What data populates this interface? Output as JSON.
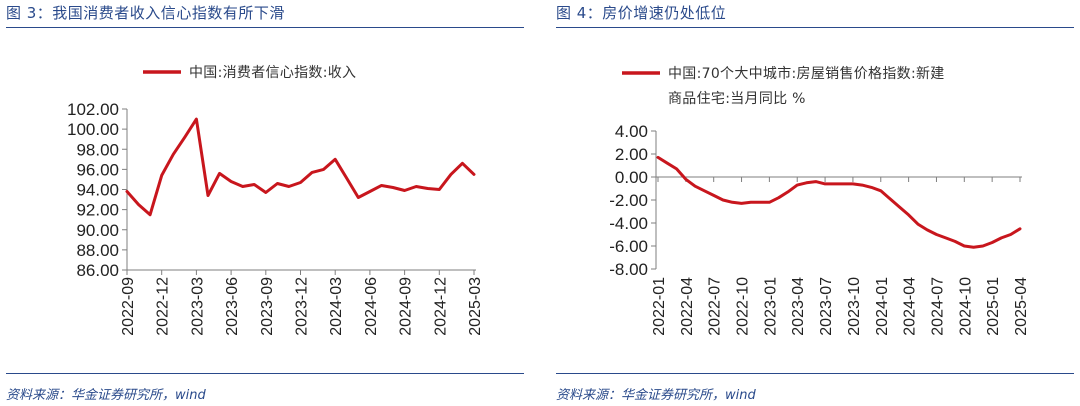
{
  "figures": [
    {
      "title": "图 3：我国消费者收入信心指数有所下滑",
      "source": "资料来源：华金证券研究所，wind",
      "chart_data": {
        "type": "line",
        "title": "",
        "xlabel": "",
        "ylabel": "",
        "legend_position": "top",
        "grid": false,
        "ylim": [
          86,
          102
        ],
        "yticks": [
          "86.00",
          "88.00",
          "90.00",
          "92.00",
          "94.00",
          "96.00",
          "98.00",
          "100.00",
          "102.00"
        ],
        "x_tick_labels": [
          "2022-09",
          "2022-12",
          "2023-03",
          "2023-06",
          "2023-09",
          "2023-12",
          "2024-03",
          "2024-06",
          "2024-09",
          "2024-12",
          "2025-03"
        ],
        "x": [
          "2022-09",
          "2022-10",
          "2022-11",
          "2022-12",
          "2023-01",
          "2023-02",
          "2023-03",
          "2023-04",
          "2023-05",
          "2023-06",
          "2023-07",
          "2023-08",
          "2023-09",
          "2023-10",
          "2023-11",
          "2023-12",
          "2024-01",
          "2024-02",
          "2024-03",
          "2024-04",
          "2024-05",
          "2024-06",
          "2024-07",
          "2024-08",
          "2024-09",
          "2024-10",
          "2024-11",
          "2024-12",
          "2025-01",
          "2025-02",
          "2025-03"
        ],
        "series": [
          {
            "name": "中国:消费者信心指数:收入",
            "color": "#c8161d",
            "values": [
              93.8,
              92.5,
              91.5,
              95.4,
              97.5,
              99.2,
              101.0,
              93.4,
              95.6,
              94.8,
              94.3,
              94.5,
              93.7,
              94.6,
              94.3,
              94.7,
              95.7,
              96.0,
              97.0,
              95.1,
              93.2,
              93.8,
              94.4,
              94.2,
              93.9,
              94.3,
              94.1,
              94.0,
              95.5,
              96.6,
              95.5
            ]
          }
        ]
      }
    },
    {
      "title": "图 4：房价增速仍处低位",
      "source": "资料来源：华金证券研究所，wind",
      "chart_data": {
        "type": "line",
        "title": "",
        "xlabel": "",
        "ylabel": "",
        "legend_position": "top",
        "grid": false,
        "ylim": [
          -8,
          4
        ],
        "yticks": [
          "-8.00",
          "-6.00",
          "-4.00",
          "-2.00",
          "0.00",
          "2.00",
          "4.00"
        ],
        "x_tick_labels": [
          "2022-01",
          "2022-04",
          "2022-07",
          "2022-10",
          "2023-01",
          "2023-04",
          "2023-07",
          "2023-10",
          "2024-01",
          "2024-04",
          "2024-07",
          "2024-10",
          "2025-01",
          "2025-04"
        ],
        "x": [
          "2022-01",
          "2022-02",
          "2022-03",
          "2022-04",
          "2022-05",
          "2022-06",
          "2022-07",
          "2022-08",
          "2022-09",
          "2022-10",
          "2022-11",
          "2022-12",
          "2023-01",
          "2023-02",
          "2023-03",
          "2023-04",
          "2023-05",
          "2023-06",
          "2023-07",
          "2023-08",
          "2023-09",
          "2023-10",
          "2023-11",
          "2023-12",
          "2024-01",
          "2024-02",
          "2024-03",
          "2024-04",
          "2024-05",
          "2024-06",
          "2024-07",
          "2024-08",
          "2024-09",
          "2024-10",
          "2024-11",
          "2024-12",
          "2025-01",
          "2025-02",
          "2025-03",
          "2025-04"
        ],
        "series": [
          {
            "name": "中国:70个大中城市:房屋销售价格指数:新建商品住宅:当月同比 %",
            "color": "#c8161d",
            "values": [
              1.7,
              1.2,
              0.7,
              -0.2,
              -0.8,
              -1.2,
              -1.6,
              -2.0,
              -2.2,
              -2.3,
              -2.2,
              -2.2,
              -2.2,
              -1.8,
              -1.3,
              -0.7,
              -0.5,
              -0.4,
              -0.6,
              -0.6,
              -0.6,
              -0.6,
              -0.7,
              -0.9,
              -1.2,
              -1.9,
              -2.6,
              -3.3,
              -4.1,
              -4.6,
              -5.0,
              -5.3,
              -5.6,
              -6.0,
              -6.1,
              -6.0,
              -5.7,
              -5.3,
              -5.0,
              -4.5
            ]
          }
        ]
      }
    }
  ]
}
